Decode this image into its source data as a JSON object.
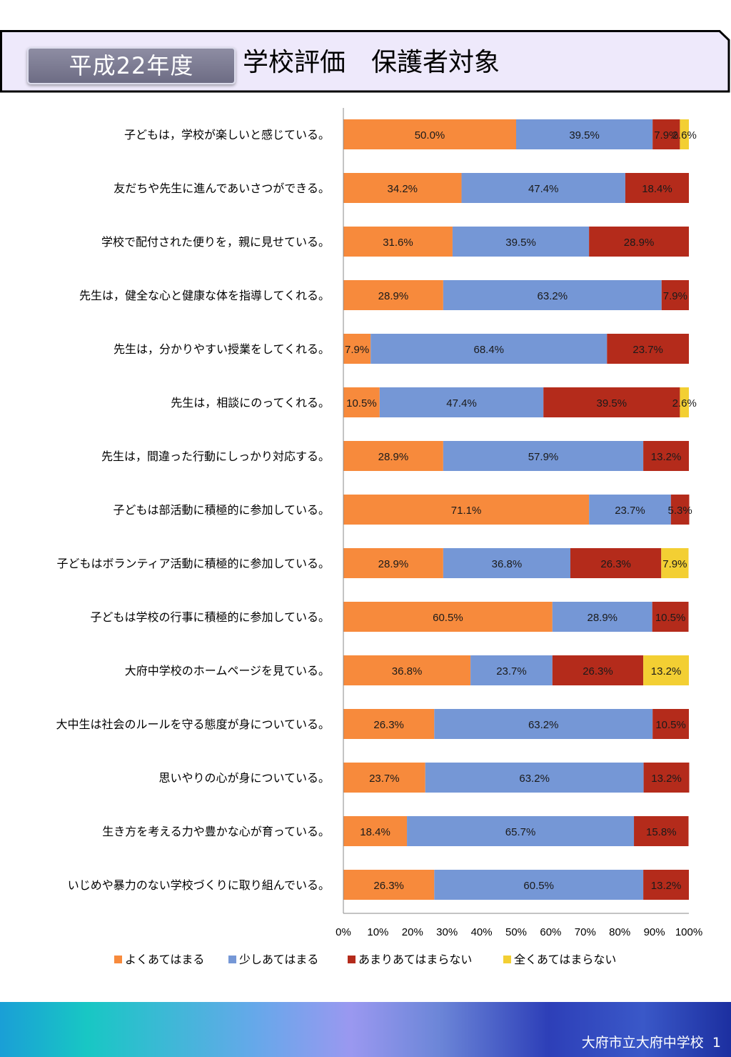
{
  "header": {
    "year_label": "平成22年度",
    "title": "学校評価　保護者対象"
  },
  "footer": {
    "school": "大府市立大府中学校",
    "page": "1"
  },
  "colors": {
    "header_bg": "#eee9fb",
    "series": [
      "#f78a3c",
      "#7597d6",
      "#b42b1b",
      "#f3cf33"
    ]
  },
  "chart_data": {
    "type": "bar",
    "orientation": "horizontal",
    "stacked": "percent",
    "categories": [
      "子どもは，学校が楽しいと感じている。",
      "友だちや先生に進んであいさつができる。",
      "学校で配付された便りを，親に見せている。",
      "先生は，健全な心と健康な体を指導してくれる。",
      "先生は，分かりやすい授業をしてくれる。",
      "先生は，相談にのってくれる。",
      "先生は，間違った行動にしっかり対応する。",
      "子どもは部活動に積極的に参加している。",
      "子どもはボランティア活動に積極的に参加している。",
      "子どもは学校の行事に積極的に参加している。",
      "大府中学校のホームページを見ている。",
      "大中生は社会のルールを守る態度が身についている。",
      "思いやりの心が身についている。",
      "生き方を考える力や豊かな心が育っている。",
      "いじめや暴力のない学校づくりに取り組んでいる。"
    ],
    "series": [
      {
        "name": "よくあてはまる",
        "values": [
          50.0,
          34.2,
          31.6,
          28.9,
          7.9,
          10.5,
          28.9,
          71.1,
          28.9,
          60.5,
          36.8,
          26.3,
          23.7,
          18.4,
          26.3
        ]
      },
      {
        "name": "少しあてはまる",
        "values": [
          39.5,
          47.4,
          39.5,
          63.2,
          68.4,
          47.4,
          57.9,
          23.7,
          36.8,
          28.9,
          23.7,
          63.2,
          63.2,
          65.7,
          60.5
        ]
      },
      {
        "name": "あまりあてはまらない",
        "values": [
          7.9,
          18.4,
          28.9,
          7.9,
          23.7,
          39.5,
          13.2,
          5.3,
          26.3,
          10.5,
          26.3,
          10.5,
          13.2,
          15.8,
          13.2
        ]
      },
      {
        "name": "全くあてはまらない",
        "values": [
          2.6,
          0,
          0,
          0,
          0,
          2.6,
          0,
          0,
          7.9,
          0,
          13.2,
          0,
          0,
          0,
          0
        ]
      }
    ],
    "xticks": [
      "0%",
      "10%",
      "20%",
      "30%",
      "40%",
      "50%",
      "60%",
      "70%",
      "80%",
      "90%",
      "100%"
    ],
    "xlim": [
      0,
      100
    ],
    "legend_position": "bottom",
    "grid": false
  }
}
